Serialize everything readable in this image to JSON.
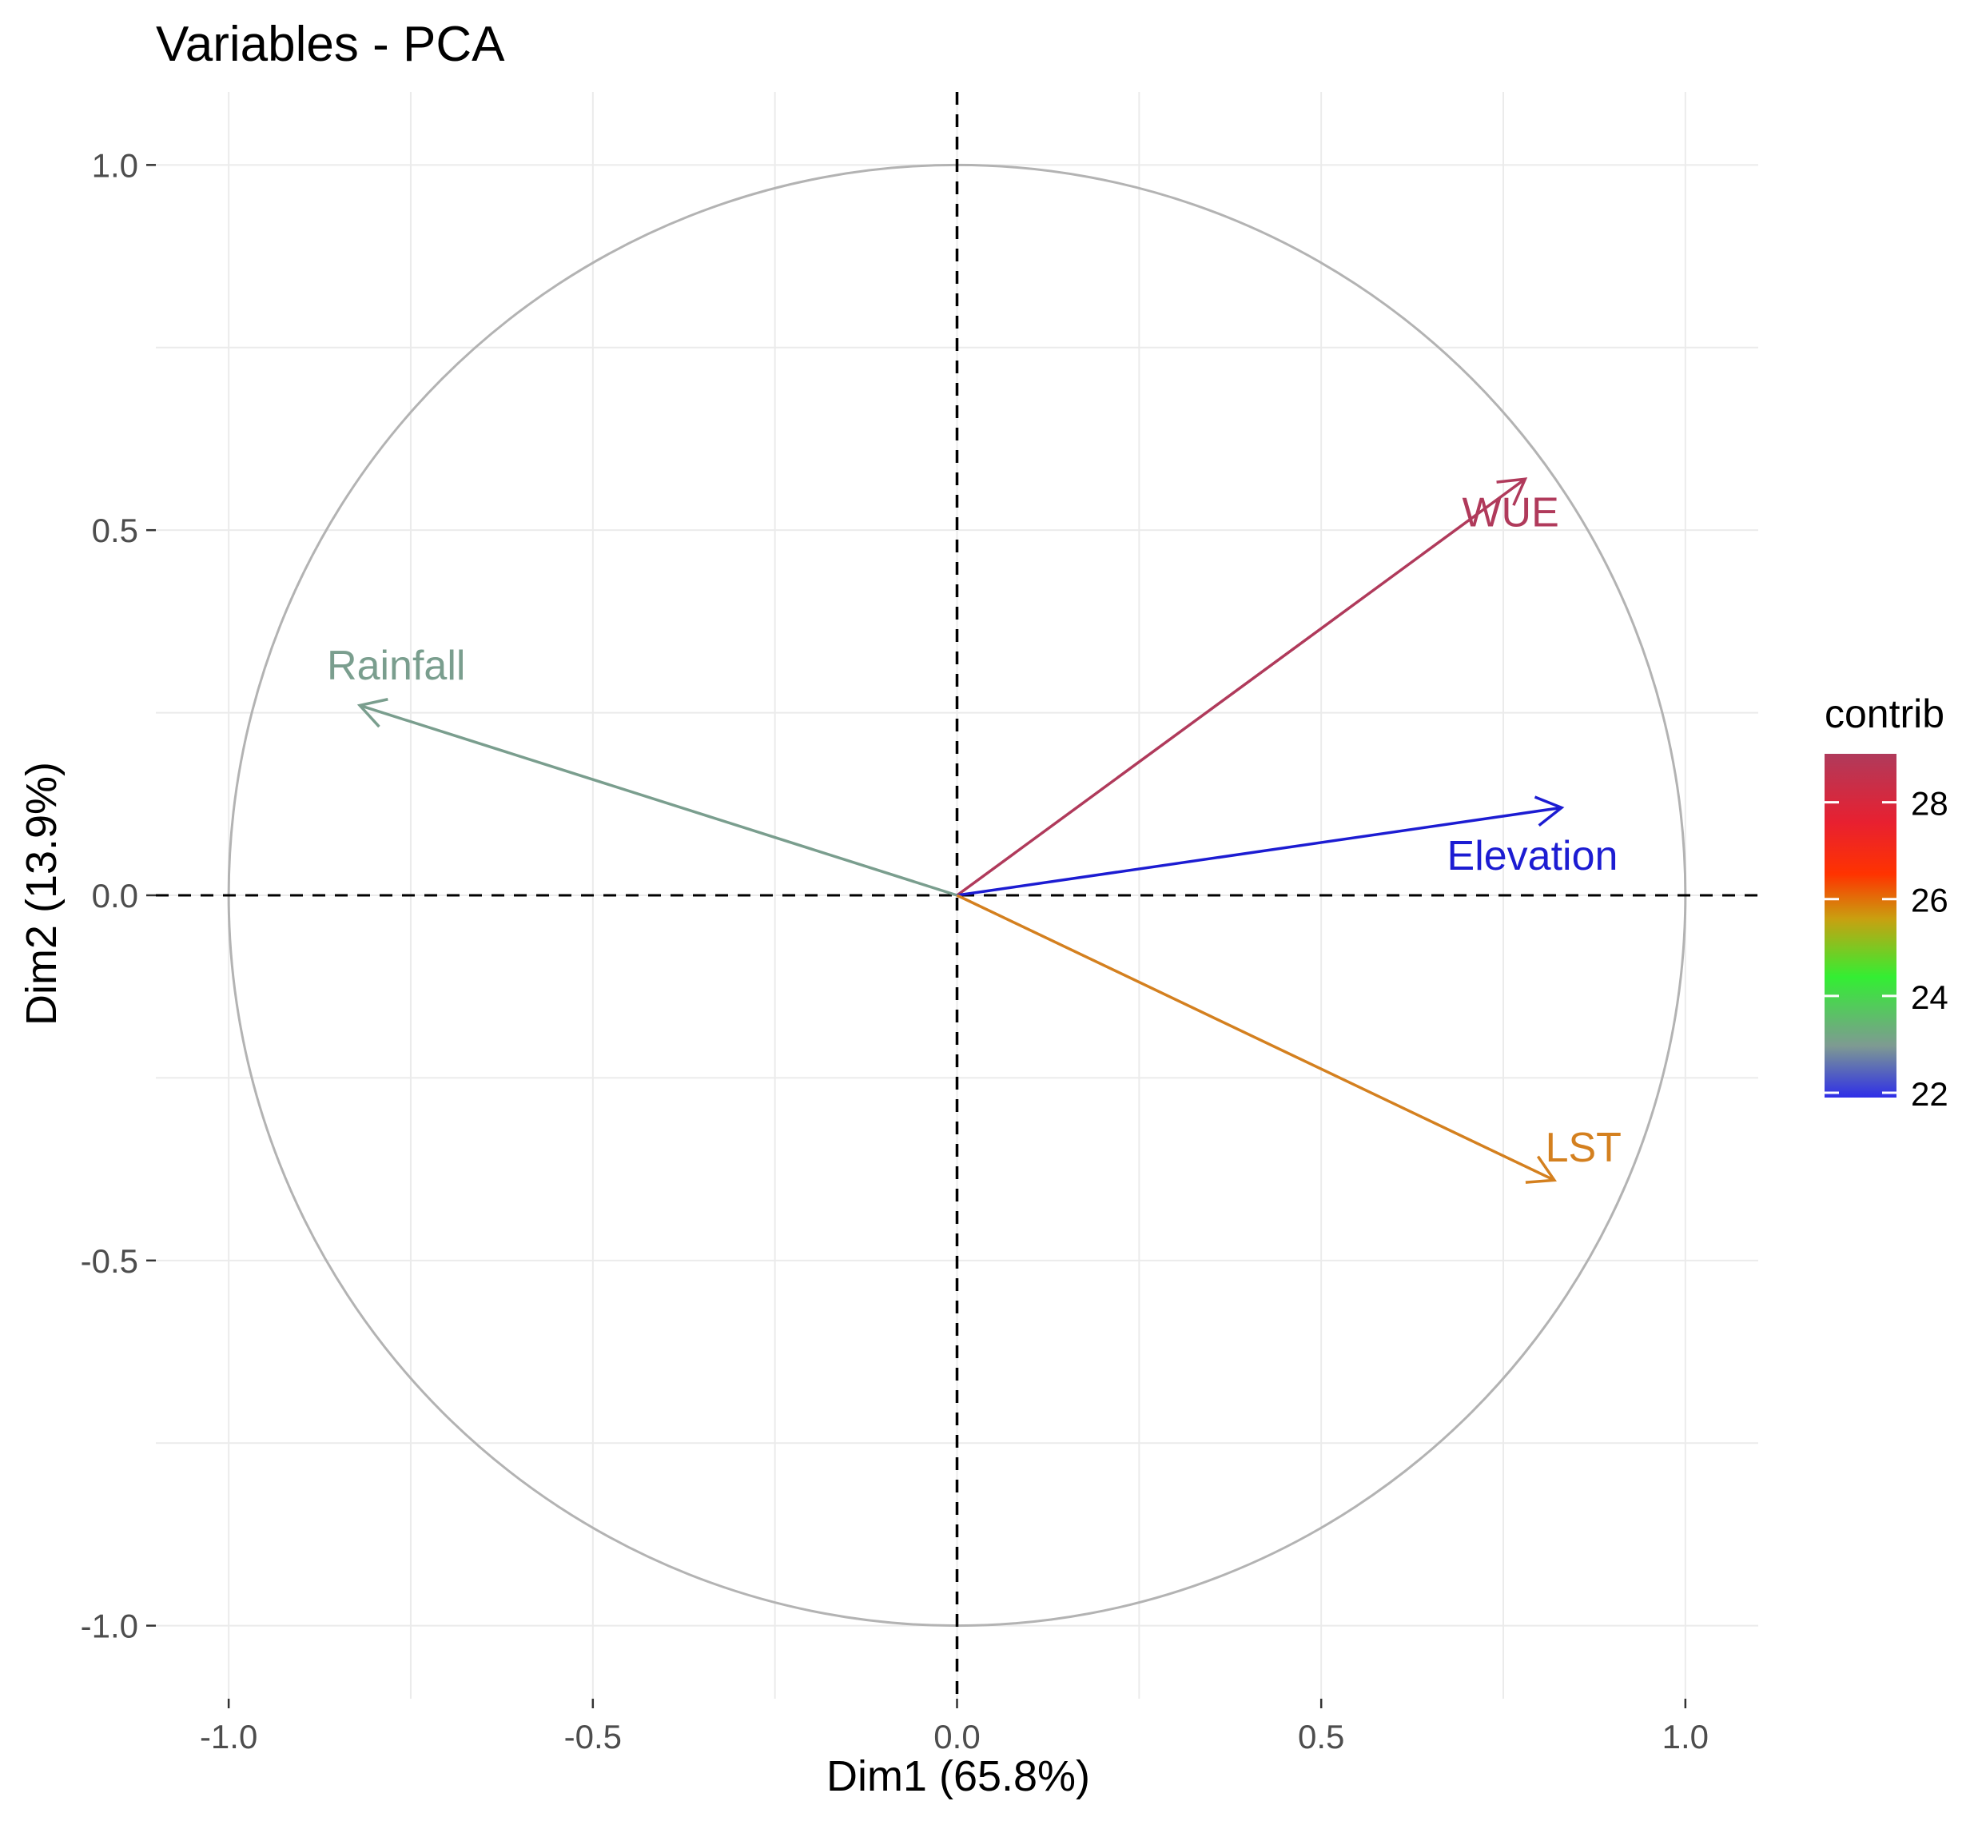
{
  "chart_data": {
    "type": "pca-variable-correlation-circle",
    "title": "Variables - PCA",
    "xlabel": "Dim1 (65.8%)",
    "ylabel": "Dim2 (13.9%)",
    "xlim": [
      -1.1,
      1.1
    ],
    "ylim": [
      -1.1,
      1.1
    ],
    "x_ticks": [
      -1.0,
      -0.5,
      0.0,
      0.5,
      1.0
    ],
    "x_tick_labels": [
      "-1.0",
      "-0.5",
      "0.0",
      "0.5",
      "1.0"
    ],
    "y_ticks": [
      -1.0,
      -0.5,
      0.0,
      0.5,
      1.0
    ],
    "y_tick_labels": [
      "-1.0",
      "-0.5",
      "0.0",
      "0.5",
      "1.0"
    ],
    "grid": true,
    "unit_circle": true,
    "variables": [
      {
        "name": "WUE",
        "x": 0.78,
        "y": 0.57,
        "contrib": 29.0,
        "color": "#B03A5B"
      },
      {
        "name": "Rainfall",
        "x": -0.82,
        "y": 0.26,
        "contrib": 22.8,
        "color": "#7A9E8E"
      },
      {
        "name": "Elevation",
        "x": 0.83,
        "y": 0.12,
        "contrib": 21.9,
        "color": "#1C1CD2"
      },
      {
        "name": "LST",
        "x": 0.82,
        "y": -0.39,
        "contrib": 26.2,
        "color": "#D4801F"
      }
    ],
    "legend": {
      "title": "contrib",
      "position": "right",
      "min": 21.9,
      "max": 29.0,
      "ticks": [
        22,
        24,
        26,
        28
      ],
      "tick_labels": [
        "22",
        "24",
        "26",
        "28"
      ],
      "gradient_colors": [
        "#2E2EE8",
        "#7E9A92",
        "#33EE33",
        "#C9A010",
        "#FF3300",
        "#E82030",
        "#B03A5B"
      ]
    }
  }
}
